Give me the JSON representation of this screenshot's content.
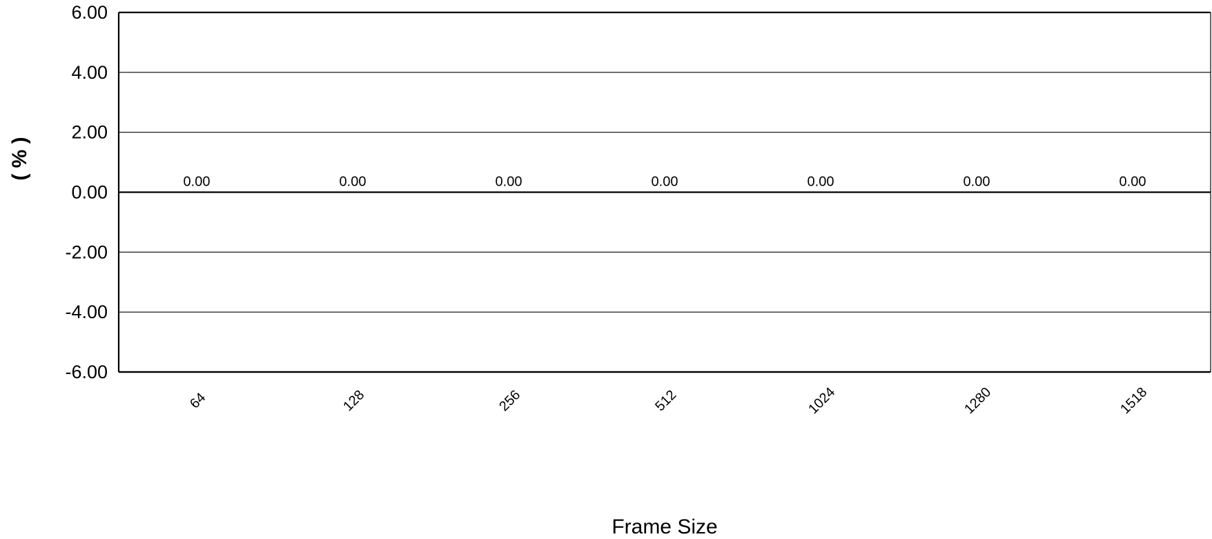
{
  "chart_data": {
    "type": "bar",
    "categories": [
      "64",
      "128",
      "256",
      "512",
      "1024",
      "1280",
      "1518"
    ],
    "values": [
      0,
      0,
      0,
      0,
      0,
      0,
      0
    ],
    "data_labels": [
      "0.00",
      "0.00",
      "0.00",
      "0.00",
      "0.00",
      "0.00",
      "0.00"
    ],
    "y_ticks": [
      6,
      4,
      2,
      0,
      -2,
      -4,
      -6
    ],
    "y_tick_labels": [
      "6.00",
      "4.00",
      "2.00",
      "0.00",
      "-2.00",
      "-4.00",
      "-6.00"
    ],
    "ylim": [
      -6,
      6
    ],
    "xlabel": "Frame Size",
    "ylabel": "( % )",
    "grid": true,
    "colors": {
      "axis": "#000000",
      "grid": "#000000",
      "background": "#ffffff"
    }
  }
}
